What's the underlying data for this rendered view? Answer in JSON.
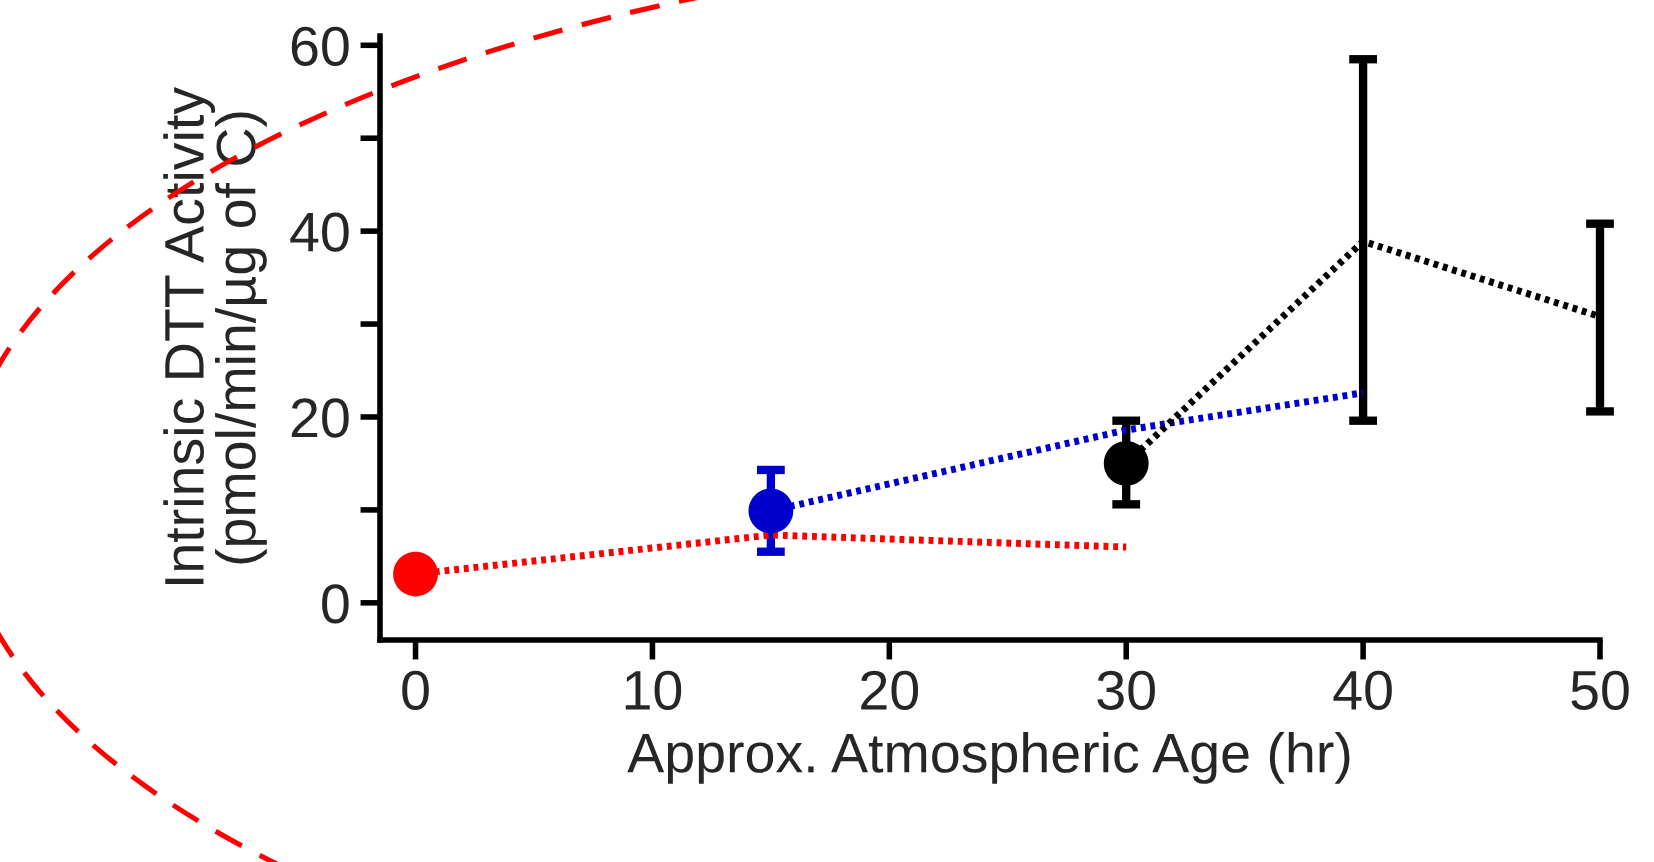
{
  "chart_data": {
    "type": "scatter",
    "xlabel": "Approx. Atmospheric Age (hr)",
    "ylabel": "Intrinsic DTT Activity\n(pmol/min/µg of C)",
    "xlim": [
      -1.5,
      50
    ],
    "ylim": [
      -4,
      61
    ],
    "xticks": [
      0,
      10,
      20,
      30,
      40,
      50
    ],
    "yticks": [
      0,
      {
        "value": 10,
        "label": null
      },
      20,
      {
        "value": 30,
        "label": null
      },
      40,
      {
        "value": 50,
        "label": null
      },
      60
    ],
    "grid": false,
    "legend": false,
    "series": [
      {
        "type": "line",
        "x": [
          0,
          15,
          30
        ],
        "values": [
          3.1,
          7.3,
          6.0
        ],
        "color": "#ff0000",
        "line_style": "dotted",
        "marker": "none"
      },
      {
        "type": "line",
        "x": [
          15,
          30,
          40
        ],
        "values": [
          9.9,
          18.6,
          22.6
        ],
        "color": "#0000cc",
        "line_style": "dotted",
        "marker": "none"
      },
      {
        "type": "line",
        "x": [
          30,
          40,
          50
        ],
        "values": [
          15.0,
          38.9,
          30.8
        ],
        "color": "#000000",
        "line_style": "dotted",
        "marker": "none",
        "errors": [
          null,
          [
            19.6,
            58.5
          ],
          [
            20.6,
            40.8
          ]
        ]
      },
      {
        "x": [
          0,
          15,
          30
        ],
        "values": [
          3.1,
          9.9,
          15.0
        ],
        "colors": [
          "#ff0000",
          "#0000cc",
          "#000000"
        ],
        "marker": "circle",
        "errors": [
          null,
          [
            5.5,
            14.3
          ],
          [
            10.6,
            19.6
          ]
        ]
      }
    ]
  }
}
